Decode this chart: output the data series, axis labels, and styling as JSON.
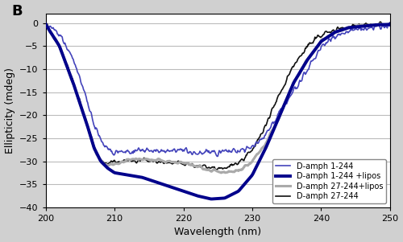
{
  "title": "B",
  "xlabel": "Wavelength (nm)",
  "ylabel": "Ellipticity (mdeg)",
  "xlim": [
    200,
    250
  ],
  "ylim": [
    -40,
    2
  ],
  "yticks": [
    0,
    -5,
    -10,
    -15,
    -20,
    -25,
    -30,
    -35,
    -40
  ],
  "xticks": [
    200,
    210,
    220,
    230,
    240,
    250
  ],
  "fig_bg_color": "#d0d0d0",
  "plot_bg_color": "#ffffff",
  "grid_color": "#bbbbbb",
  "legend": [
    {
      "label": "D-amph 1-244",
      "color": "#4444bb",
      "lw": 1.2
    },
    {
      "label": "D-amph 1-244 +lipos",
      "color": "#00008B",
      "lw": 2.8
    },
    {
      "label": "D-amph 27-244+lipos",
      "color": "#aaaaaa",
      "lw": 2.2
    },
    {
      "label": "D-amph 27-244",
      "color": "#111111",
      "lw": 1.2
    }
  ]
}
